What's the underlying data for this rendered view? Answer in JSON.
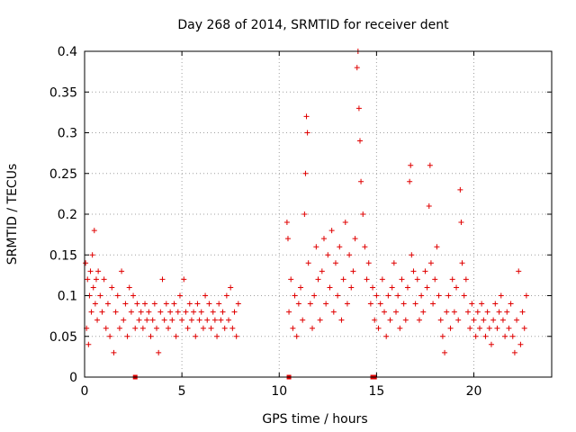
{
  "chart_data": {
    "type": "scatter",
    "title": "Day 268 of 2014, SRMTID for receiver dent",
    "xlabel": "GPS time / hours",
    "ylabel": "SRMTID / TECUs",
    "xlim": [
      0,
      24
    ],
    "ylim": [
      0,
      0.4
    ],
    "x_ticks": [
      0,
      5,
      10,
      15,
      20
    ],
    "y_ticks": [
      0,
      0.05,
      0.1,
      0.15,
      0.2,
      0.25,
      0.3,
      0.35,
      0.4
    ],
    "x_tick_labels": [
      "0",
      "5",
      "10",
      "15",
      "20"
    ],
    "y_tick_labels": [
      "0",
      "0.05",
      "0.1",
      "0.15",
      "0.2",
      "0.25",
      "0.3",
      "0.35",
      "0.4"
    ],
    "grid": true,
    "marker": "+",
    "color": "#e00000",
    "series": [
      {
        "name": "SRMTID",
        "points": [
          [
            0.05,
            0.14
          ],
          [
            0.1,
            0.06
          ],
          [
            0.15,
            0.12
          ],
          [
            0.2,
            0.04
          ],
          [
            0.25,
            0.1
          ],
          [
            0.3,
            0.13
          ],
          [
            0.35,
            0.08
          ],
          [
            0.4,
            0.15
          ],
          [
            0.45,
            0.11
          ],
          [
            0.5,
            0.18
          ],
          [
            0.55,
            0.09
          ],
          [
            0.6,
            0.12
          ],
          [
            0.65,
            0.07
          ],
          [
            0.7,
            0.13
          ],
          [
            0.8,
            0.1
          ],
          [
            0.9,
            0.08
          ],
          [
            1.0,
            0.12
          ],
          [
            1.1,
            0.06
          ],
          [
            1.2,
            0.09
          ],
          [
            1.3,
            0.05
          ],
          [
            1.4,
            0.11
          ],
          [
            1.5,
            0.03
          ],
          [
            1.6,
            0.08
          ],
          [
            1.7,
            0.1
          ],
          [
            1.8,
            0.06
          ],
          [
            1.9,
            0.13
          ],
          [
            2.0,
            0.07
          ],
          [
            2.1,
            0.09
          ],
          [
            2.2,
            0.05
          ],
          [
            2.3,
            0.11
          ],
          [
            2.4,
            0.08
          ],
          [
            2.5,
            0.1
          ],
          [
            2.6,
            0.06
          ],
          [
            2.7,
            0.09
          ],
          [
            2.8,
            0.07
          ],
          [
            2.9,
            0.08
          ],
          [
            3.0,
            0.06
          ],
          [
            3.1,
            0.09
          ],
          [
            3.2,
            0.07
          ],
          [
            3.3,
            0.08
          ],
          [
            3.4,
            0.05
          ],
          [
            3.5,
            0.07
          ],
          [
            3.6,
            0.09
          ],
          [
            3.7,
            0.06
          ],
          [
            3.8,
            0.03
          ],
          [
            3.9,
            0.08
          ],
          [
            4.0,
            0.12
          ],
          [
            4.1,
            0.07
          ],
          [
            4.2,
            0.09
          ],
          [
            4.3,
            0.06
          ],
          [
            4.4,
            0.08
          ],
          [
            4.5,
            0.07
          ],
          [
            4.6,
            0.09
          ],
          [
            4.7,
            0.05
          ],
          [
            4.8,
            0.08
          ],
          [
            4.9,
            0.1
          ],
          [
            5.0,
            0.07
          ],
          [
            5.1,
            0.12
          ],
          [
            5.2,
            0.08
          ],
          [
            5.3,
            0.06
          ],
          [
            5.4,
            0.09
          ],
          [
            5.5,
            0.07
          ],
          [
            5.6,
            0.08
          ],
          [
            5.7,
            0.05
          ],
          [
            5.8,
            0.09
          ],
          [
            5.9,
            0.07
          ],
          [
            6.0,
            0.08
          ],
          [
            6.1,
            0.06
          ],
          [
            6.2,
            0.1
          ],
          [
            6.3,
            0.07
          ],
          [
            6.4,
            0.09
          ],
          [
            6.5,
            0.06
          ],
          [
            6.6,
            0.08
          ],
          [
            6.7,
            0.07
          ],
          [
            6.8,
            0.05
          ],
          [
            6.9,
            0.09
          ],
          [
            7.0,
            0.07
          ],
          [
            7.1,
            0.08
          ],
          [
            7.2,
            0.06
          ],
          [
            7.3,
            0.1
          ],
          [
            7.4,
            0.07
          ],
          [
            7.5,
            0.11
          ],
          [
            7.6,
            0.06
          ],
          [
            7.7,
            0.08
          ],
          [
            7.8,
            0.05
          ],
          [
            7.9,
            0.09
          ],
          [
            10.4,
            0.19
          ],
          [
            10.45,
            0.17
          ],
          [
            10.5,
            0.08
          ],
          [
            10.6,
            0.12
          ],
          [
            10.7,
            0.06
          ],
          [
            10.8,
            0.1
          ],
          [
            10.9,
            0.05
          ],
          [
            11.0,
            0.09
          ],
          [
            11.1,
            0.11
          ],
          [
            11.2,
            0.07
          ],
          [
            11.3,
            0.2
          ],
          [
            11.35,
            0.25
          ],
          [
            11.4,
            0.32
          ],
          [
            11.45,
            0.3
          ],
          [
            11.5,
            0.14
          ],
          [
            11.6,
            0.09
          ],
          [
            11.7,
            0.06
          ],
          [
            11.8,
            0.1
          ],
          [
            11.9,
            0.16
          ],
          [
            12.0,
            0.12
          ],
          [
            12.1,
            0.07
          ],
          [
            12.2,
            0.13
          ],
          [
            12.3,
            0.17
          ],
          [
            12.4,
            0.09
          ],
          [
            12.5,
            0.15
          ],
          [
            12.6,
            0.11
          ],
          [
            12.7,
            0.18
          ],
          [
            12.8,
            0.08
          ],
          [
            12.9,
            0.14
          ],
          [
            13.0,
            0.1
          ],
          [
            13.1,
            0.16
          ],
          [
            13.2,
            0.07
          ],
          [
            13.3,
            0.12
          ],
          [
            13.4,
            0.19
          ],
          [
            13.5,
            0.09
          ],
          [
            13.6,
            0.15
          ],
          [
            13.7,
            0.11
          ],
          [
            13.8,
            0.13
          ],
          [
            13.9,
            0.17
          ],
          [
            14.0,
            0.38
          ],
          [
            14.05,
            0.4
          ],
          [
            14.1,
            0.33
          ],
          [
            14.15,
            0.29
          ],
          [
            14.2,
            0.24
          ],
          [
            14.3,
            0.2
          ],
          [
            14.4,
            0.16
          ],
          [
            14.5,
            0.12
          ],
          [
            14.6,
            0.14
          ],
          [
            14.7,
            0.09
          ],
          [
            14.8,
            0.11
          ],
          [
            14.9,
            0.07
          ],
          [
            15.0,
            0.1
          ],
          [
            15.1,
            0.06
          ],
          [
            15.2,
            0.09
          ],
          [
            15.3,
            0.12
          ],
          [
            15.4,
            0.08
          ],
          [
            15.5,
            0.05
          ],
          [
            15.6,
            0.1
          ],
          [
            15.7,
            0.07
          ],
          [
            15.8,
            0.11
          ],
          [
            15.9,
            0.14
          ],
          [
            16.0,
            0.08
          ],
          [
            16.1,
            0.1
          ],
          [
            16.2,
            0.06
          ],
          [
            16.3,
            0.12
          ],
          [
            16.4,
            0.09
          ],
          [
            16.5,
            0.07
          ],
          [
            16.6,
            0.11
          ],
          [
            16.7,
            0.24
          ],
          [
            16.75,
            0.26
          ],
          [
            16.8,
            0.15
          ],
          [
            16.9,
            0.13
          ],
          [
            17.0,
            0.09
          ],
          [
            17.1,
            0.12
          ],
          [
            17.2,
            0.07
          ],
          [
            17.3,
            0.1
          ],
          [
            17.4,
            0.08
          ],
          [
            17.5,
            0.13
          ],
          [
            17.6,
            0.11
          ],
          [
            17.7,
            0.21
          ],
          [
            17.75,
            0.26
          ],
          [
            17.8,
            0.14
          ],
          [
            17.9,
            0.09
          ],
          [
            18.0,
            0.12
          ],
          [
            18.1,
            0.16
          ],
          [
            18.2,
            0.1
          ],
          [
            18.3,
            0.07
          ],
          [
            18.4,
            0.05
          ],
          [
            18.5,
            0.03
          ],
          [
            18.6,
            0.08
          ],
          [
            18.7,
            0.1
          ],
          [
            18.8,
            0.06
          ],
          [
            18.9,
            0.12
          ],
          [
            19.0,
            0.08
          ],
          [
            19.1,
            0.11
          ],
          [
            19.2,
            0.07
          ],
          [
            19.3,
            0.23
          ],
          [
            19.35,
            0.19
          ],
          [
            19.4,
            0.14
          ],
          [
            19.5,
            0.1
          ],
          [
            19.6,
            0.12
          ],
          [
            19.7,
            0.08
          ],
          [
            19.8,
            0.06
          ],
          [
            19.9,
            0.09
          ],
          [
            20.0,
            0.07
          ],
          [
            20.1,
            0.05
          ],
          [
            20.2,
            0.08
          ],
          [
            20.3,
            0.06
          ],
          [
            20.4,
            0.09
          ],
          [
            20.5,
            0.07
          ],
          [
            20.6,
            0.05
          ],
          [
            20.7,
            0.08
          ],
          [
            20.8,
            0.06
          ],
          [
            20.9,
            0.04
          ],
          [
            21.0,
            0.07
          ],
          [
            21.1,
            0.09
          ],
          [
            21.2,
            0.06
          ],
          [
            21.3,
            0.08
          ],
          [
            21.4,
            0.1
          ],
          [
            21.5,
            0.07
          ],
          [
            21.6,
            0.05
          ],
          [
            21.7,
            0.08
          ],
          [
            21.8,
            0.06
          ],
          [
            21.9,
            0.09
          ],
          [
            22.0,
            0.05
          ],
          [
            22.1,
            0.03
          ],
          [
            22.2,
            0.07
          ],
          [
            22.3,
            0.13
          ],
          [
            22.4,
            0.04
          ],
          [
            22.5,
            0.08
          ],
          [
            22.6,
            0.06
          ],
          [
            22.7,
            0.1
          ]
        ]
      },
      {
        "name": "zero-markers",
        "points": [
          [
            2.6,
            0
          ],
          [
            10.5,
            0
          ],
          [
            14.8,
            0
          ],
          [
            14.9,
            0
          ]
        ]
      }
    ]
  }
}
